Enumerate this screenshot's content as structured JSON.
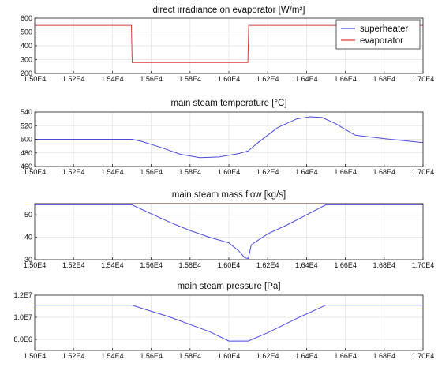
{
  "chart_data": [
    {
      "type": "line",
      "title": "direct irradiance on evaporator [W/m²]",
      "xlim": [
        15000,
        17000
      ],
      "ylim": [
        200,
        600
      ],
      "xticks": [
        "1.50E4",
        "1.52E4",
        "1.54E4",
        "1.56E4",
        "1.58E4",
        "1.60E4",
        "1.62E4",
        "1.64E4",
        "1.66E4",
        "1.68E4",
        "1.70E4"
      ],
      "yticks": [
        "200",
        "300",
        "400",
        "500",
        "600"
      ],
      "yticks_values": [
        200,
        300,
        400,
        500,
        600
      ],
      "grid": true,
      "legend": {
        "placement": "top-right",
        "entries": [
          {
            "name": "superheater",
            "color": "#4a4ae0"
          },
          {
            "name": "evaporator",
            "color": "#e03a3a"
          }
        ]
      },
      "series": [
        {
          "name": "evaporator",
          "color": "#e03a3a",
          "x": [
            15000,
            15498,
            15502,
            16098,
            16102,
            17000
          ],
          "y": [
            548,
            548,
            278,
            278,
            548,
            548
          ]
        }
      ]
    },
    {
      "type": "line",
      "title": "main steam temperature [°C]",
      "xlim": [
        15000,
        17000
      ],
      "ylim": [
        460,
        540
      ],
      "xticks": [
        "1.50E4",
        "1.52E4",
        "1.54E4",
        "1.56E4",
        "1.58E4",
        "1.60E4",
        "1.62E4",
        "1.64E4",
        "1.66E4",
        "1.68E4",
        "1.70E4"
      ],
      "yticks": [
        "460",
        "480",
        "500",
        "520",
        "540"
      ],
      "yticks_values": [
        460,
        480,
        500,
        520,
        540
      ],
      "grid": true,
      "series": [
        {
          "name": "superheater",
          "color": "#4a4ae0",
          "x": [
            15000,
            15500,
            15550,
            15650,
            15750,
            15850,
            15950,
            16050,
            16100,
            16150,
            16250,
            16350,
            16420,
            16480,
            16550,
            16650,
            16800,
            17000
          ],
          "y": [
            500,
            500,
            497,
            488,
            478,
            473,
            474,
            479,
            483,
            495,
            517,
            530,
            533,
            532,
            523,
            506,
            501,
            495
          ]
        }
      ]
    },
    {
      "type": "line",
      "title": "main steam mass flow [kg/s]",
      "xlim": [
        15000,
        17000
      ],
      "ylim": [
        30,
        55
      ],
      "xticks": [
        "1.50E4",
        "1.52E4",
        "1.54E4",
        "1.56E4",
        "1.58E4",
        "1.60E4",
        "1.62E4",
        "1.64E4",
        "1.66E4",
        "1.68E4",
        "1.70E4"
      ],
      "yticks": [
        "30",
        "40",
        "50"
      ],
      "yticks_values": [
        30,
        40,
        50
      ],
      "grid": true,
      "series": [
        {
          "name": "superheater",
          "color": "#4a4ae0",
          "x": [
            15000,
            15500,
            15600,
            15700,
            15800,
            15900,
            16000,
            16050,
            16080,
            16100,
            16115,
            16130,
            16200,
            16300,
            16400,
            16500,
            17000
          ],
          "y": [
            54.5,
            54.5,
            50.5,
            46.5,
            43,
            40,
            37.5,
            34,
            31,
            30.5,
            36.5,
            37.5,
            41.5,
            45.5,
            50,
            54.5,
            54.5
          ]
        },
        {
          "name": "evaporator",
          "color": "#e03a3a",
          "x": [
            15000,
            17000
          ],
          "y": [
            55,
            55
          ]
        }
      ]
    },
    {
      "type": "line",
      "title": "main steam pressure [Pa]",
      "xlim": [
        15000,
        17000
      ],
      "ylim": [
        7000000,
        12000000
      ],
      "xticks": [
        "1.50E4",
        "1.52E4",
        "1.54E4",
        "1.56E4",
        "1.58E4",
        "1.60E4",
        "1.62E4",
        "1.64E4",
        "1.66E4",
        "1.68E4",
        "1.70E4"
      ],
      "yticks": [
        "8.0E6",
        "1.0E7",
        "1.2E7"
      ],
      "yticks_values": [
        8000000,
        10000000,
        12000000
      ],
      "grid": true,
      "series": [
        {
          "name": "superheater",
          "color": "#4a4ae0",
          "x": [
            15000,
            15500,
            15700,
            15900,
            16000,
            16100,
            16200,
            16350,
            16500,
            17000
          ],
          "y": [
            11100000,
            11100000,
            10000000,
            8700000,
            7850000,
            7850000,
            8600000,
            9900000,
            11100000,
            11100000
          ]
        }
      ]
    }
  ]
}
